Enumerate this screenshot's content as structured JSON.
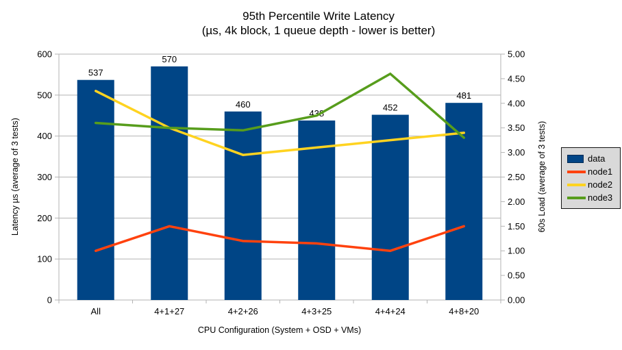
{
  "chart_data": {
    "type": "combo-bar-line",
    "title": "95th Percentile Write Latency",
    "subtitle": "(µs, 4k block, 1 queue depth - lower is better)",
    "categories": [
      "All",
      "4+1+27",
      "4+2+26",
      "4+3+25",
      "4+4+24",
      "4+8+20"
    ],
    "bar_series": {
      "name": "data",
      "axis": "left",
      "color": "#004586",
      "values": [
        537,
        570,
        460,
        438,
        452,
        481
      ],
      "labels": [
        "537",
        "570",
        "460",
        "438",
        "452",
        "481"
      ]
    },
    "line_series": [
      {
        "name": "node1",
        "axis": "right",
        "color": "#ff420e",
        "values": [
          1.0,
          1.5,
          1.2,
          1.15,
          1.0,
          1.5
        ]
      },
      {
        "name": "node2",
        "axis": "right",
        "color": "#ffd320",
        "values": [
          4.25,
          3.5,
          2.95,
          3.1,
          3.25,
          3.4
        ]
      },
      {
        "name": "node3",
        "axis": "right",
        "color": "#579d1c",
        "values": [
          3.6,
          3.5,
          3.45,
          3.75,
          4.6,
          3.3
        ]
      }
    ],
    "left_axis": {
      "label": "Latency µs (average of 3 tests)",
      "min": 0,
      "max": 600,
      "step": 100,
      "ticks": [
        "0",
        "100",
        "200",
        "300",
        "400",
        "500",
        "600"
      ]
    },
    "right_axis": {
      "label": "60s Load (average of 3 tests)",
      "min": 0,
      "max": 5,
      "step": 0.5,
      "ticks": [
        "0.00",
        "0.50",
        "1.00",
        "1.50",
        "2.00",
        "2.50",
        "3.00",
        "3.50",
        "4.00",
        "4.50",
        "5.00"
      ]
    },
    "x_axis": {
      "label": "CPU Configuration (System + OSD + VMs)"
    },
    "legend": {
      "position": "right",
      "entries": [
        {
          "label": "data",
          "type": "bar",
          "color": "#004586"
        },
        {
          "label": "node1",
          "type": "line",
          "color": "#ff420e"
        },
        {
          "label": "node2",
          "type": "line",
          "color": "#ffd320"
        },
        {
          "label": "node3",
          "type": "line",
          "color": "#579d1c"
        }
      ]
    },
    "grid": "horizontal",
    "colors": {
      "background": "#ffffff",
      "grid": "#b3b3b3",
      "axis": "#b3b3b3",
      "text": "#000000",
      "legend_bg": "#d9d9d9",
      "legend_border": "#111111"
    }
  }
}
